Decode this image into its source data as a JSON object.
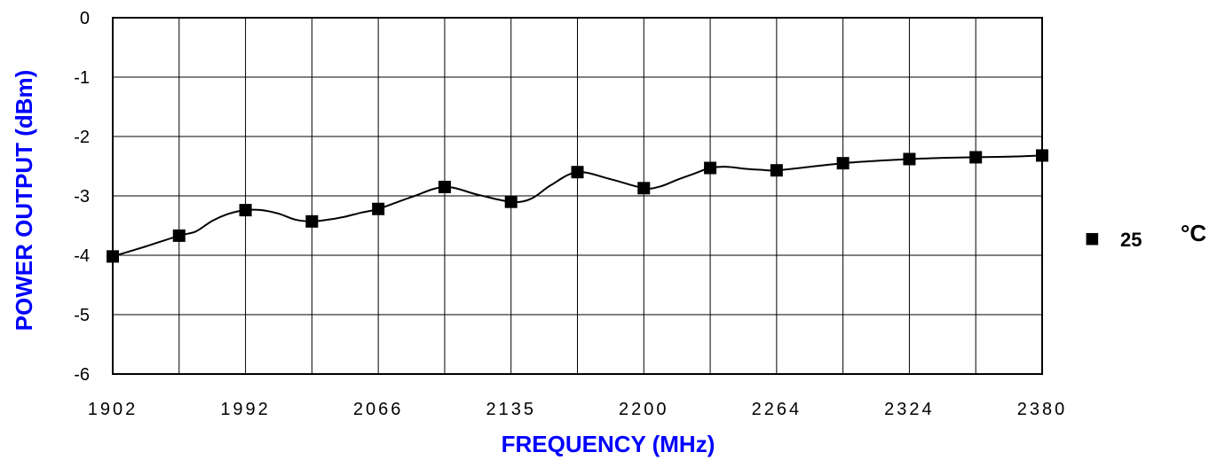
{
  "chart_data": {
    "type": "line",
    "xlabel": "FREQUENCY (MHz)",
    "ylabel": "POWER OUTPUT (dBm)",
    "ylim": [
      -6,
      0
    ],
    "yticks": [
      "0",
      "-1",
      "-2",
      "-3",
      "-4",
      "-5",
      "-6"
    ],
    "x_tick_labels": [
      "1902",
      "1992",
      "2066",
      "2135",
      "2200",
      "2264",
      "2324",
      "2380"
    ],
    "x_category_count": 15,
    "grid": true,
    "legend": "right",
    "series": [
      {
        "legend_marker": "■",
        "legend_value": "25",
        "legend_unit": "°C",
        "color": "#000000",
        "marker": "square",
        "marker_index_positions": [
          0,
          1,
          2,
          3,
          4,
          5,
          6,
          7,
          8,
          9,
          10,
          11,
          12,
          13,
          14
        ],
        "marker_values": [
          -4.02,
          -3.67,
          -3.24,
          -3.43,
          -3.22,
          -2.85,
          -3.1,
          -2.6,
          -2.87,
          -2.53,
          -2.57,
          -2.45,
          -2.38,
          -2.35,
          -2.32
        ],
        "curve_index_positions": [
          0,
          0.5,
          1,
          1.25,
          1.5,
          1.75,
          2,
          2.25,
          2.5,
          2.75,
          3,
          3.25,
          3.5,
          3.75,
          4,
          4.5,
          5,
          5.5,
          6,
          6.3,
          6.6,
          7,
          7.5,
          8,
          8.25,
          8.5,
          8.75,
          9,
          9.25,
          9.5,
          9.75,
          10,
          10.5,
          11,
          11.5,
          12,
          12.5,
          13,
          13.5,
          14
        ],
        "curve_values": [
          -4.02,
          -3.85,
          -3.67,
          -3.6,
          -3.42,
          -3.3,
          -3.24,
          -3.24,
          -3.3,
          -3.4,
          -3.43,
          -3.4,
          -3.35,
          -3.28,
          -3.22,
          -3.02,
          -2.85,
          -2.98,
          -3.1,
          -3.05,
          -2.82,
          -2.6,
          -2.72,
          -2.87,
          -2.84,
          -2.73,
          -2.63,
          -2.53,
          -2.51,
          -2.54,
          -2.56,
          -2.57,
          -2.51,
          -2.45,
          -2.41,
          -2.38,
          -2.36,
          -2.35,
          -2.34,
          -2.32
        ]
      }
    ]
  }
}
